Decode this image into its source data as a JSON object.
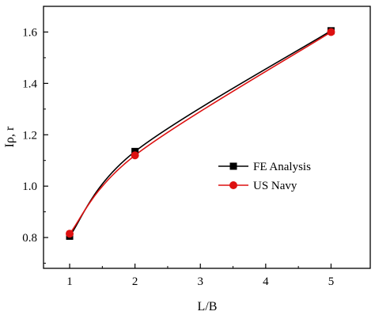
{
  "chart_data": {
    "type": "line",
    "xlabel": "L/B",
    "ylabel": "Iρ, r",
    "x_ticks": [
      "1",
      "2",
      "3",
      "4",
      "5"
    ],
    "y_ticks": [
      "0.8",
      "1.0",
      "1.2",
      "1.4",
      "1.6"
    ],
    "xlim": [
      0.6,
      5.6
    ],
    "ylim": [
      0.68,
      1.7
    ],
    "grid": false,
    "legend_position": "center-right",
    "series": [
      {
        "name": "FE Analysis",
        "color": "#000000",
        "marker": "square",
        "x": [
          1,
          2,
          5
        ],
        "y": [
          0.805,
          1.135,
          1.605
        ]
      },
      {
        "name": "US Navy",
        "color": "#dd1111",
        "marker": "circle",
        "x": [
          1,
          2,
          5
        ],
        "y": [
          0.815,
          1.12,
          1.6
        ]
      }
    ]
  }
}
